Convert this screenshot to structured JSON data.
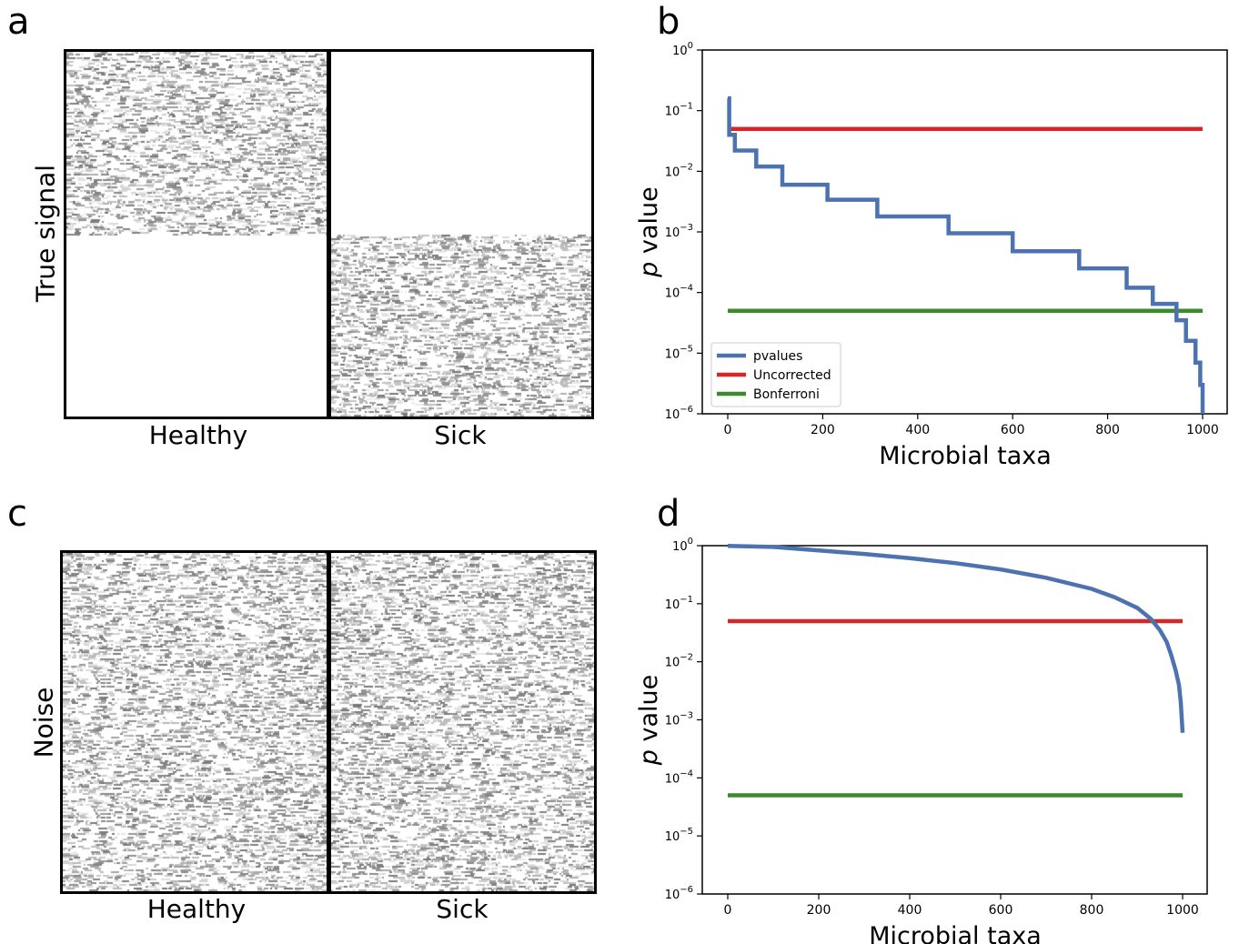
{
  "panels": {
    "a": {
      "letter": "a",
      "ylabel": "True signal",
      "groups": [
        "Healthy",
        "Sick"
      ]
    },
    "b": {
      "letter": "b"
    },
    "c": {
      "letter": "c",
      "ylabel": "Noise",
      "groups": [
        "Healthy",
        "Sick"
      ]
    },
    "d": {
      "letter": "d"
    }
  },
  "chart_data": [
    {
      "type": "line",
      "panel": "b",
      "xlabel": "Microbial taxa",
      "ylabel": "p value",
      "xlim": [
        0,
        1000
      ],
      "ylim": [
        1e-06,
        1
      ],
      "yscale": "log",
      "xticks": [
        0,
        200,
        400,
        600,
        800,
        1000
      ],
      "yticks": [
        1,
        0.1,
        0.01,
        0.001,
        0.0001,
        1e-05,
        1e-06
      ],
      "legend_position": "lower-left",
      "series": [
        {
          "name": "pvalues",
          "color": "#4c72b0",
          "x": [
            0,
            3,
            3,
            15,
            15,
            60,
            60,
            115,
            115,
            210,
            210,
            315,
            315,
            465,
            465,
            600,
            600,
            740,
            740,
            840,
            840,
            895,
            895,
            945,
            945,
            965,
            965,
            985,
            985,
            995,
            995,
            1000,
            1000
          ],
          "y": [
            0.16,
            0.16,
            0.04,
            0.04,
            0.022,
            0.022,
            0.012,
            0.012,
            0.006,
            0.006,
            0.0034,
            0.0034,
            0.0018,
            0.0018,
            0.00095,
            0.00095,
            0.00048,
            0.00048,
            0.00025,
            0.00025,
            0.00012,
            0.00012,
            6.5e-05,
            6.5e-05,
            3.5e-05,
            3.5e-05,
            1.6e-05,
            1.6e-05,
            7e-06,
            7e-06,
            3e-06,
            3e-06,
            1e-06
          ]
        },
        {
          "name": "Uncorrected",
          "color": "#d62728",
          "x": [
            0,
            1000
          ],
          "y": [
            0.05,
            0.05
          ]
        },
        {
          "name": "Bonferroni",
          "color": "#3a8c2a",
          "x": [
            0,
            1000
          ],
          "y": [
            5e-05,
            5e-05
          ]
        }
      ]
    },
    {
      "type": "line",
      "panel": "d",
      "xlabel": "Microbial taxa",
      "ylabel": "p value",
      "xlim": [
        0,
        1000
      ],
      "ylim": [
        1e-06,
        1
      ],
      "yscale": "log",
      "xticks": [
        0,
        200,
        400,
        600,
        800,
        1000
      ],
      "yticks": [
        1,
        0.1,
        0.01,
        0.001,
        0.0001,
        1e-05,
        1e-06
      ],
      "series": [
        {
          "name": "",
          "color": "#4c72b0",
          "x": [
            0,
            100,
            200,
            300,
            400,
            500,
            600,
            700,
            800,
            850,
            900,
            930,
            950,
            965,
            975,
            985,
            992,
            996,
            1000
          ],
          "y": [
            0.99,
            0.95,
            0.83,
            0.72,
            0.61,
            0.5,
            0.39,
            0.28,
            0.18,
            0.13,
            0.085,
            0.055,
            0.035,
            0.022,
            0.013,
            0.007,
            0.004,
            0.002,
            0.0006
          ]
        },
        {
          "name": "",
          "color": "#d62728",
          "x": [
            0,
            1000
          ],
          "y": [
            0.05,
            0.05
          ]
        },
        {
          "name": "",
          "color": "#3a8c2a",
          "x": [
            0,
            1000
          ],
          "y": [
            5e-05,
            5e-05
          ]
        }
      ]
    }
  ]
}
